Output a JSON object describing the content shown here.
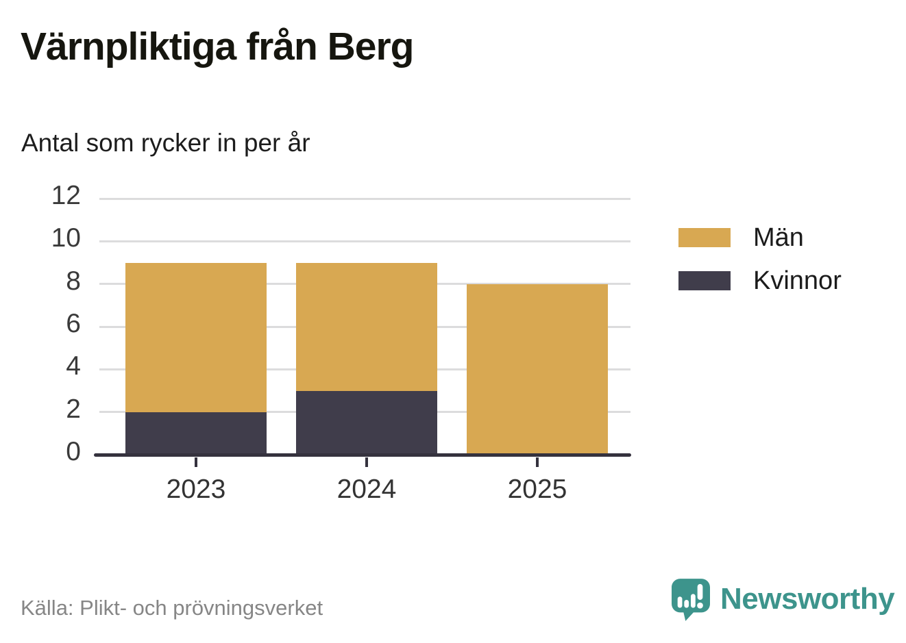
{
  "header": {
    "title": "Värnpliktiga från Berg",
    "subtitle": "Antal som rycker in per år"
  },
  "chart_data": {
    "type": "bar",
    "stacked": true,
    "title": "Värnpliktiga från Berg",
    "subtitle": "Antal som rycker in per år",
    "categories": [
      "2023",
      "2024",
      "2025"
    ],
    "series": [
      {
        "name": "Män",
        "color": "#d8a852",
        "values": [
          7,
          6,
          8
        ]
      },
      {
        "name": "Kvinnor",
        "color": "#403d4b",
        "values": [
          2,
          3,
          0
        ]
      }
    ],
    "stack_order_bottom_to_top": [
      "Kvinnor",
      "Män"
    ],
    "totals": [
      9,
      9,
      8
    ],
    "xlabel": "",
    "ylabel": "",
    "ylim": [
      0,
      12
    ],
    "yticks": [
      0,
      2,
      4,
      6,
      8,
      10,
      12
    ],
    "grid": true,
    "legend_position": "right"
  },
  "legend": {
    "items": [
      {
        "label": "Män",
        "color": "#d8a852"
      },
      {
        "label": "Kvinnor",
        "color": "#403d4b"
      }
    ]
  },
  "footer": {
    "source": "Källa: Plikt- och prövningsverket",
    "brand": "Newsworthy"
  },
  "colors": {
    "men": "#d8a852",
    "women": "#403d4b",
    "axis": "#35323e",
    "gridline": "#dcdcdd",
    "brand_teal": "#3d948c",
    "source_gray": "#868686"
  }
}
